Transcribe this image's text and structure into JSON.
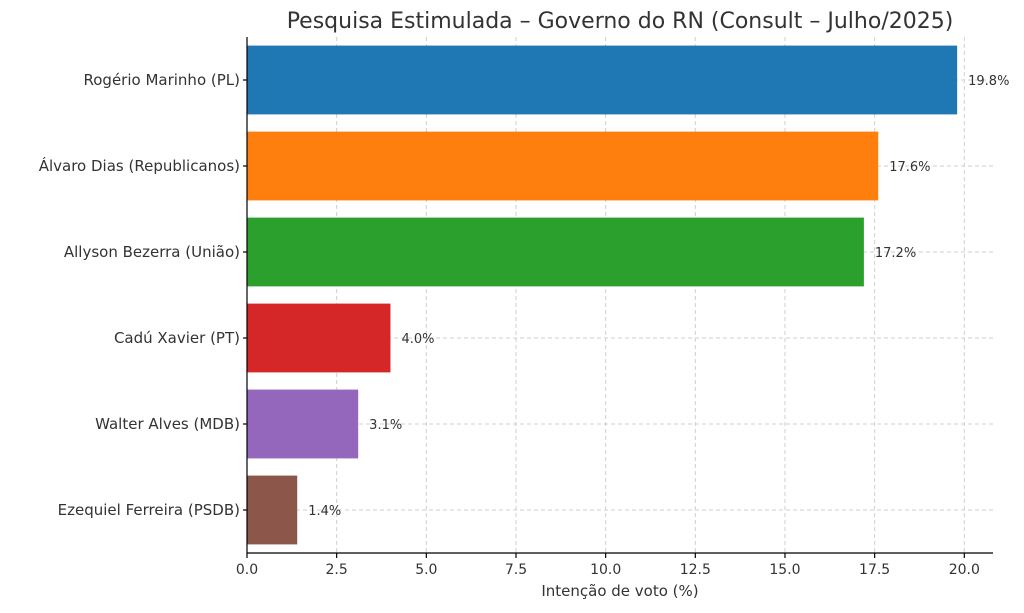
{
  "chart_data": {
    "type": "bar",
    "orientation": "horizontal",
    "title": "Pesquisa Estimulada – Governo do RN (Consult – Julho/2025)",
    "xlabel": "Intenção de voto (%)",
    "ylabel": "",
    "categories": [
      "Rogério Marinho (PL)",
      "Álvaro Dias (Republicanos)",
      "Allyson Bezerra (União)",
      "Cadú Xavier (PT)",
      "Walter Alves (MDB)",
      "Ezequiel Ferreira (PSDB)"
    ],
    "values": [
      19.8,
      17.6,
      17.2,
      4.0,
      3.1,
      1.4
    ],
    "value_labels": [
      "19.8%",
      "17.6%",
      "17.2%",
      "4.0%",
      "3.1%",
      "1.4%"
    ],
    "colors": [
      "#1f77b4",
      "#ff7f0e",
      "#2ca02c",
      "#d62728",
      "#9467bd",
      "#8c564b"
    ],
    "xlim": [
      0,
      20.8
    ],
    "xticks": [
      0,
      2.5,
      5,
      7.5,
      10,
      12.5,
      15,
      17.5,
      20
    ],
    "xtick_labels": [
      "0.0",
      "2.5",
      "5.0",
      "7.5",
      "10.0",
      "12.5",
      "15.0",
      "17.5",
      "20.0"
    ],
    "grid": true
  }
}
